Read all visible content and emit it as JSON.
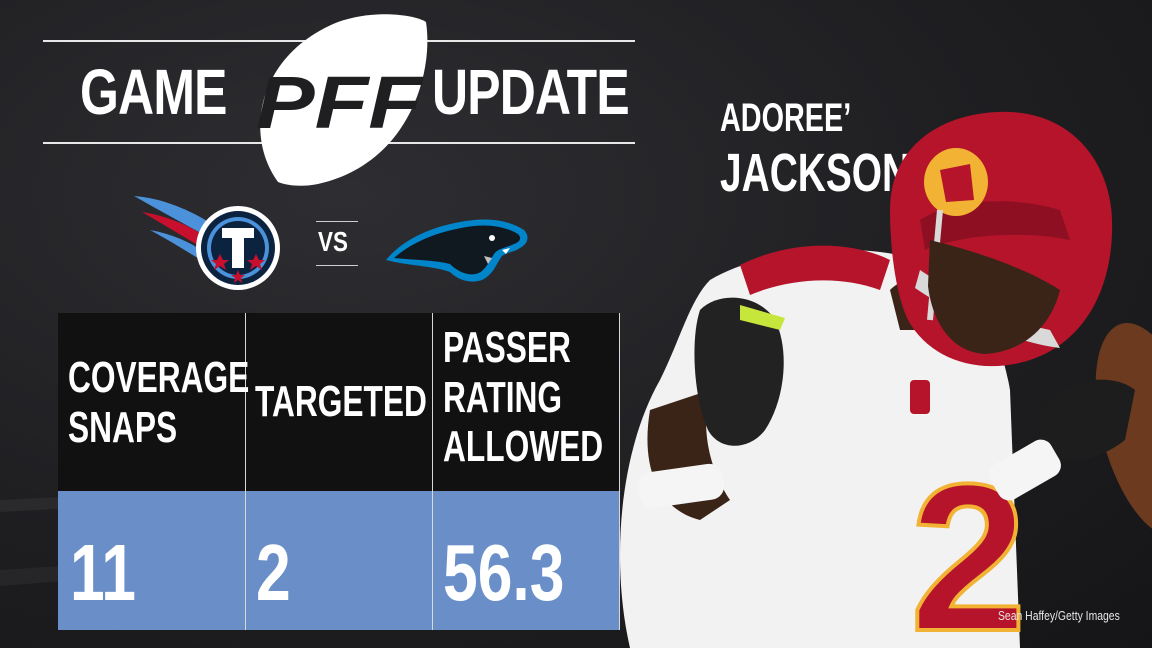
{
  "header": {
    "left_word": "GAME",
    "logo_text": "PFF",
    "right_word": "UPDATE"
  },
  "player": {
    "first_name": "ADOREE’",
    "last_name": "JACKSON",
    "jersey_number": "2"
  },
  "matchup": {
    "vs_label": "VS",
    "team_left_logo": "titans-logo",
    "team_right_logo": "panthers-logo"
  },
  "stats": {
    "columns": [
      {
        "header": "COVERAGE\nSNAPS",
        "value": "11"
      },
      {
        "header": "TARGETED",
        "value": "2"
      },
      {
        "header": "PASSER\nRATING\nALLOWED",
        "value": "56.3"
      }
    ]
  },
  "credit": "Sean Haffey/Getty Images",
  "colors": {
    "background": "#1f1f22",
    "header_row": "#111112",
    "value_row": "#6a8fc8",
    "helmet_red": "#b5142a",
    "helmet_gold": "#f2b233"
  }
}
